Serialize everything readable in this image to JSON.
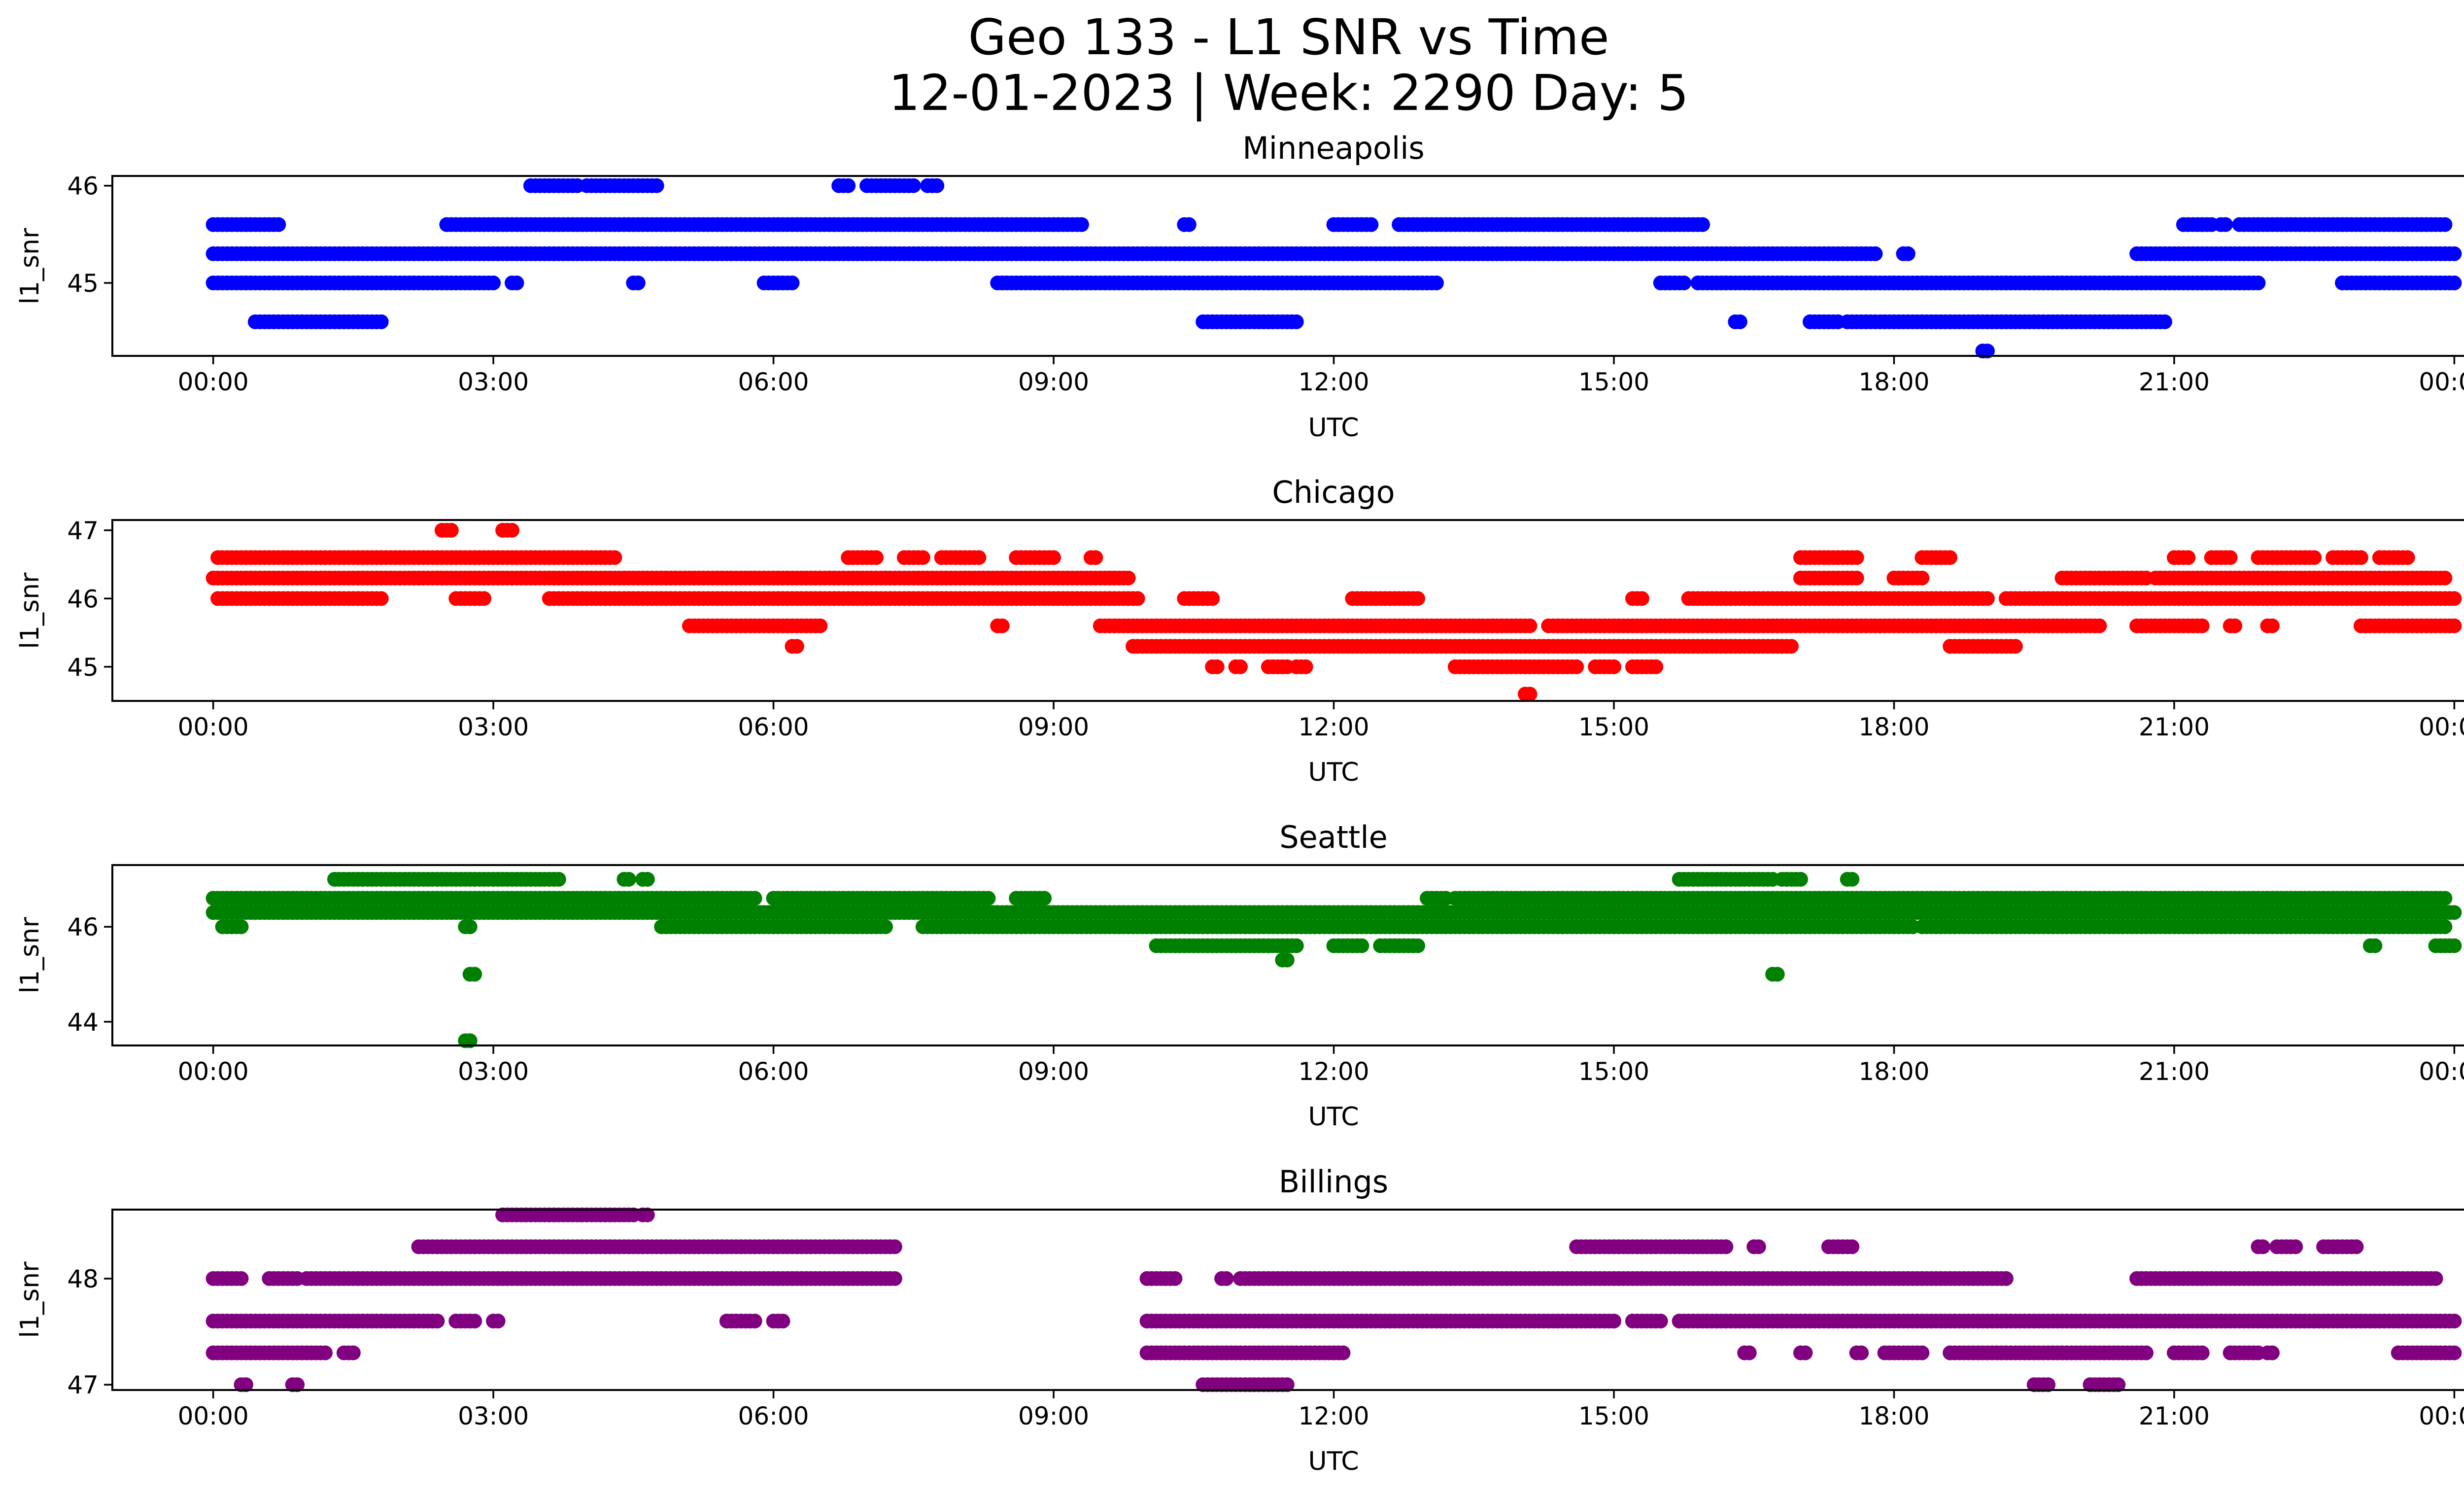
{
  "figure": {
    "title_line1": "Geo 133 - L1 SNR vs Time",
    "title_line2": "12-01-2023 | Week: 2290 Day: 5"
  },
  "chart_data": [
    {
      "type": "scatter",
      "title": "Minneapolis",
      "xlabel": "UTC",
      "ylabel": "l1_snr",
      "color": "#0000ff",
      "x_ticks": [
        "00:00",
        "03:00",
        "06:00",
        "09:00",
        "12:00",
        "15:00",
        "18:00",
        "21:00",
        "00:00"
      ],
      "x_range_hours": [
        0,
        24
      ],
      "y_ticks": [
        45,
        46
      ],
      "ylim": [
        44.25,
        46.1
      ],
      "levels": [
        {
          "y": 46.0,
          "ranges": [
            [
              3.4,
              3.55
            ],
            [
              3.6,
              3.9
            ],
            [
              4.0,
              4.75
            ],
            [
              6.7,
              6.8
            ],
            [
              7.0,
              7.5
            ],
            [
              7.65,
              7.75
            ]
          ]
        },
        {
          "y": 45.6,
          "ranges": [
            [
              0.0,
              0.7
            ],
            [
              2.5,
              9.3
            ],
            [
              10.4,
              10.45
            ],
            [
              12.0,
              12.4
            ],
            [
              12.7,
              15.95
            ],
            [
              21.1,
              21.4
            ],
            [
              21.5,
              21.55
            ],
            [
              21.7,
              23.9
            ]
          ]
        },
        {
          "y": 45.3,
          "ranges": [
            [
              0.0,
              17.8
            ],
            [
              18.1,
              18.15
            ],
            [
              20.6,
              24.0
            ]
          ]
        },
        {
          "y": 45.0,
          "ranges": [
            [
              0.0,
              3.0
            ],
            [
              3.2,
              3.25
            ],
            [
              4.5,
              4.55
            ],
            [
              5.9,
              6.2
            ],
            [
              8.4,
              13.1
            ],
            [
              15.5,
              15.75
            ],
            [
              15.9,
              21.9
            ],
            [
              22.8,
              24.0
            ]
          ]
        },
        {
          "y": 44.6,
          "ranges": [
            [
              0.45,
              1.8
            ],
            [
              10.6,
              11.6
            ],
            [
              16.3,
              16.35
            ],
            [
              17.1,
              17.4
            ],
            [
              17.5,
              20.9
            ]
          ]
        },
        {
          "y": 44.3,
          "ranges": [
            [
              18.95,
              19.0
            ]
          ]
        }
      ]
    },
    {
      "type": "scatter",
      "title": "Chicago",
      "xlabel": "UTC",
      "ylabel": "l1_snr",
      "color": "#ff0000",
      "x_ticks": [
        "00:00",
        "03:00",
        "06:00",
        "09:00",
        "12:00",
        "15:00",
        "18:00",
        "21:00",
        "00:00"
      ],
      "x_range_hours": [
        0,
        24
      ],
      "y_ticks": [
        45,
        46,
        47
      ],
      "ylim": [
        44.5,
        47.15
      ],
      "levels": [
        {
          "y": 47.0,
          "ranges": [
            [
              2.45,
              2.55
            ],
            [
              3.1,
              3.2
            ]
          ]
        },
        {
          "y": 46.6,
          "ranges": [
            [
              0.05,
              4.3
            ],
            [
              6.8,
              7.1
            ],
            [
              7.4,
              7.6
            ],
            [
              7.8,
              8.2
            ],
            [
              8.6,
              9.0
            ],
            [
              9.4,
              9.45
            ],
            [
              17.0,
              17.6
            ],
            [
              18.3,
              18.6
            ],
            [
              21.0,
              21.15
            ],
            [
              21.4,
              21.6
            ],
            [
              21.9,
              22.5
            ],
            [
              22.7,
              23.0
            ],
            [
              23.2,
              23.5
            ]
          ]
        },
        {
          "y": 46.3,
          "ranges": [
            [
              0.0,
              9.8
            ],
            [
              17.0,
              17.6
            ],
            [
              18.0,
              18.3
            ],
            [
              19.8,
              20.7
            ],
            [
              20.8,
              21.0
            ],
            [
              21.0,
              23.9
            ]
          ]
        },
        {
          "y": 46.0,
          "ranges": [
            [
              0.05,
              1.8
            ],
            [
              2.6,
              2.9
            ],
            [
              3.6,
              9.9
            ],
            [
              10.4,
              10.7
            ],
            [
              12.2,
              12.9
            ],
            [
              15.2,
              15.3
            ],
            [
              15.8,
              19.0
            ],
            [
              19.2,
              24.0
            ]
          ]
        },
        {
          "y": 45.6,
          "ranges": [
            [
              5.1,
              6.5
            ],
            [
              8.4,
              8.45
            ],
            [
              9.5,
              14.1
            ],
            [
              14.3,
              20.2
            ],
            [
              20.6,
              21.3
            ],
            [
              21.6,
              21.65
            ],
            [
              22.0,
              22.05
            ],
            [
              23.0,
              24.0
            ]
          ]
        },
        {
          "y": 45.3,
          "ranges": [
            [
              6.2,
              6.25
            ],
            [
              9.85,
              16.9
            ],
            [
              18.6,
              19.3
            ]
          ]
        },
        {
          "y": 45.0,
          "ranges": [
            [
              10.7,
              10.75
            ],
            [
              10.95,
              11.0
            ],
            [
              11.3,
              11.5
            ],
            [
              11.6,
              11.7
            ],
            [
              13.3,
              14.6
            ],
            [
              14.8,
              15.0
            ],
            [
              15.2,
              15.45
            ]
          ]
        },
        {
          "y": 44.6,
          "ranges": [
            [
              14.05,
              14.1
            ]
          ]
        }
      ]
    },
    {
      "type": "scatter",
      "title": "Seattle",
      "xlabel": "UTC",
      "ylabel": "l1_snr",
      "color": "#008000",
      "x_ticks": [
        "00:00",
        "03:00",
        "06:00",
        "09:00",
        "12:00",
        "15:00",
        "18:00",
        "21:00",
        "00:00"
      ],
      "x_range_hours": [
        0,
        24
      ],
      "y_ticks": [
        44,
        46
      ],
      "ylim": [
        43.5,
        47.3
      ],
      "levels": [
        {
          "y": 47.0,
          "ranges": [
            [
              1.3,
              3.7
            ],
            [
              4.4,
              4.45
            ],
            [
              4.6,
              4.65
            ],
            [
              15.7,
              16.7
            ],
            [
              16.8,
              17.0
            ],
            [
              17.5,
              17.55
            ]
          ]
        },
        {
          "y": 46.6,
          "ranges": [
            [
              0.0,
              5.8
            ],
            [
              6.0,
              8.3
            ],
            [
              8.6,
              8.9
            ],
            [
              13.0,
              13.2
            ],
            [
              13.3,
              23.9
            ]
          ]
        },
        {
          "y": 46.3,
          "ranges": [
            [
              0.0,
              24.0
            ]
          ]
        },
        {
          "y": 46.0,
          "ranges": [
            [
              0.1,
              0.3
            ],
            [
              2.7,
              2.75
            ],
            [
              4.8,
              7.2
            ],
            [
              7.6,
              9.7
            ],
            [
              9.7,
              18.2
            ],
            [
              18.3,
              23.9
            ]
          ]
        },
        {
          "y": 45.6,
          "ranges": [
            [
              10.1,
              11.6
            ],
            [
              12.0,
              12.3
            ],
            [
              12.5,
              12.9
            ],
            [
              23.1,
              23.15
            ],
            [
              23.8,
              24.0
            ]
          ]
        },
        {
          "y": 45.3,
          "ranges": [
            [
              11.45,
              11.5
            ]
          ]
        },
        {
          "y": 45.0,
          "ranges": [
            [
              2.75,
              2.8
            ],
            [
              16.7,
              16.75
            ]
          ]
        },
        {
          "y": 43.6,
          "ranges": [
            [
              2.7,
              2.75
            ]
          ]
        }
      ]
    },
    {
      "type": "scatter",
      "title": "Billings",
      "xlabel": "UTC",
      "ylabel": "l1_snr",
      "color": "#800080",
      "x_ticks": [
        "00:00",
        "03:00",
        "06:00",
        "09:00",
        "12:00",
        "15:00",
        "18:00",
        "21:00",
        "00:00"
      ],
      "x_range_hours": [
        0,
        24
      ],
      "y_ticks": [
        47,
        48
      ],
      "ylim": [
        46.95,
        48.65
      ],
      "levels": [
        {
          "y": 48.6,
          "ranges": [
            [
              3.1,
              4.5
            ],
            [
              4.6,
              4.65
            ]
          ]
        },
        {
          "y": 48.3,
          "ranges": [
            [
              2.2,
              7.3
            ],
            [
              14.6,
              16.2
            ],
            [
              16.5,
              16.55
            ],
            [
              17.3,
              17.55
            ],
            [
              21.9,
              21.95
            ],
            [
              22.1,
              22.3
            ],
            [
              22.6,
              22.95
            ]
          ]
        },
        {
          "y": 48.0,
          "ranges": [
            [
              0.0,
              0.3
            ],
            [
              0.6,
              0.9
            ],
            [
              1.0,
              7.3
            ],
            [
              10.0,
              10.3
            ],
            [
              10.8,
              10.85
            ],
            [
              11.0,
              19.2
            ],
            [
              20.6,
              23.8
            ]
          ]
        },
        {
          "y": 47.6,
          "ranges": [
            [
              0.0,
              2.4
            ],
            [
              2.6,
              2.8
            ],
            [
              3.0,
              3.05
            ],
            [
              5.5,
              5.8
            ],
            [
              6.0,
              6.1
            ],
            [
              10.0,
              15.0
            ],
            [
              15.2,
              15.5
            ],
            [
              15.7,
              24.0
            ]
          ]
        },
        {
          "y": 47.3,
          "ranges": [
            [
              0.0,
              1.2
            ],
            [
              1.4,
              1.5
            ],
            [
              10.0,
              12.1
            ],
            [
              16.4,
              16.45
            ],
            [
              17.0,
              17.05
            ],
            [
              17.6,
              17.65
            ],
            [
              17.9,
              18.3
            ],
            [
              18.6,
              20.7
            ],
            [
              21.0,
              21.3
            ],
            [
              21.6,
              21.9
            ],
            [
              22.0,
              22.05
            ],
            [
              23.4,
              24.0
            ]
          ]
        },
        {
          "y": 47.0,
          "ranges": [
            [
              0.3,
              0.35
            ],
            [
              0.85,
              0.9
            ],
            [
              10.6,
              11.5
            ],
            [
              19.5,
              19.65
            ],
            [
              20.1,
              20.4
            ]
          ]
        }
      ]
    }
  ]
}
